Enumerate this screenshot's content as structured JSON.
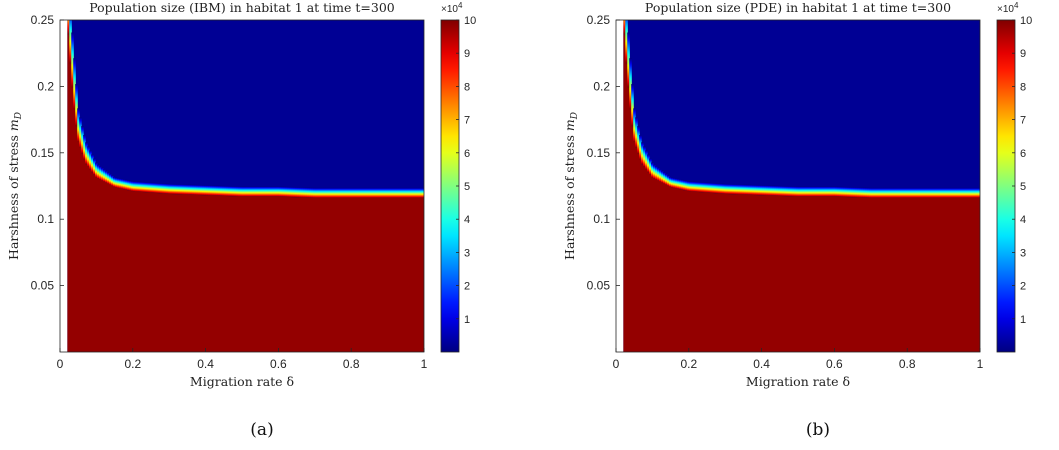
{
  "chart_data": [
    {
      "type": "heatmap",
      "title": "Population size (IBM) in habitat 1 at time t=300",
      "xlabel": "Migration rate δ",
      "ylabel": "Harshness of stress m_D",
      "ylabel_main": "Harshness of stress ",
      "ylabel_var": "m",
      "ylabel_sub": "D",
      "xlim": [
        0,
        1
      ],
      "ylim": [
        0,
        0.25
      ],
      "x_ticks": [
        "0",
        "0.2",
        "0.4",
        "0.6",
        "0.8",
        "1"
      ],
      "y_ticks": [
        "0.05",
        "0.1",
        "0.15",
        "0.2",
        "0.25"
      ],
      "colorbar": {
        "range": [
          0,
          10
        ],
        "ticks": [
          "1",
          "2",
          "3",
          "4",
          "5",
          "6",
          "7",
          "8",
          "9",
          "10"
        ],
        "multiplier": "×10",
        "exponent": "4",
        "colormap": "jet"
      },
      "boundary": {
        "description": "transition from population 10x10^4 (below) to ~0 (above)",
        "delta": [
          0.02,
          0.03,
          0.04,
          0.05,
          0.07,
          0.1,
          0.15,
          0.2,
          0.3,
          0.4,
          0.5,
          0.6,
          0.7,
          0.8,
          0.9,
          1.0
        ],
        "m_D": [
          0.25,
          0.21,
          0.18,
          0.158,
          0.142,
          0.131,
          0.124,
          0.121,
          0.119,
          0.118,
          0.117,
          0.117,
          0.116,
          0.116,
          0.116,
          0.116
        ]
      },
      "caption": "(a)"
    },
    {
      "type": "heatmap",
      "title": "Population size (PDE) in habitat 1 at time t=300",
      "xlabel": "Migration rate δ",
      "ylabel": "Harshness of stress m_D",
      "ylabel_main": "Harshness of stress ",
      "ylabel_var": "m",
      "ylabel_sub": "D",
      "xlim": [
        0,
        1
      ],
      "ylim": [
        0,
        0.25
      ],
      "x_ticks": [
        "0",
        "0.2",
        "0.4",
        "0.6",
        "0.8",
        "1"
      ],
      "y_ticks": [
        "0.05",
        "0.1",
        "0.15",
        "0.2",
        "0.25"
      ],
      "colorbar": {
        "range": [
          0,
          10
        ],
        "ticks": [
          "1",
          "2",
          "3",
          "4",
          "5",
          "6",
          "7",
          "8",
          "9",
          "10"
        ],
        "multiplier": "×10",
        "exponent": "4",
        "colormap": "jet"
      },
      "boundary": {
        "description": "transition from population 10x10^4 (below) to ~0 (above)",
        "delta": [
          0.02,
          0.03,
          0.04,
          0.05,
          0.07,
          0.1,
          0.15,
          0.2,
          0.3,
          0.4,
          0.5,
          0.6,
          0.7,
          0.8,
          0.9,
          1.0
        ],
        "m_D": [
          0.25,
          0.21,
          0.18,
          0.158,
          0.142,
          0.131,
          0.124,
          0.121,
          0.119,
          0.118,
          0.117,
          0.117,
          0.116,
          0.116,
          0.116,
          0.116
        ]
      },
      "caption": "(b)"
    }
  ]
}
